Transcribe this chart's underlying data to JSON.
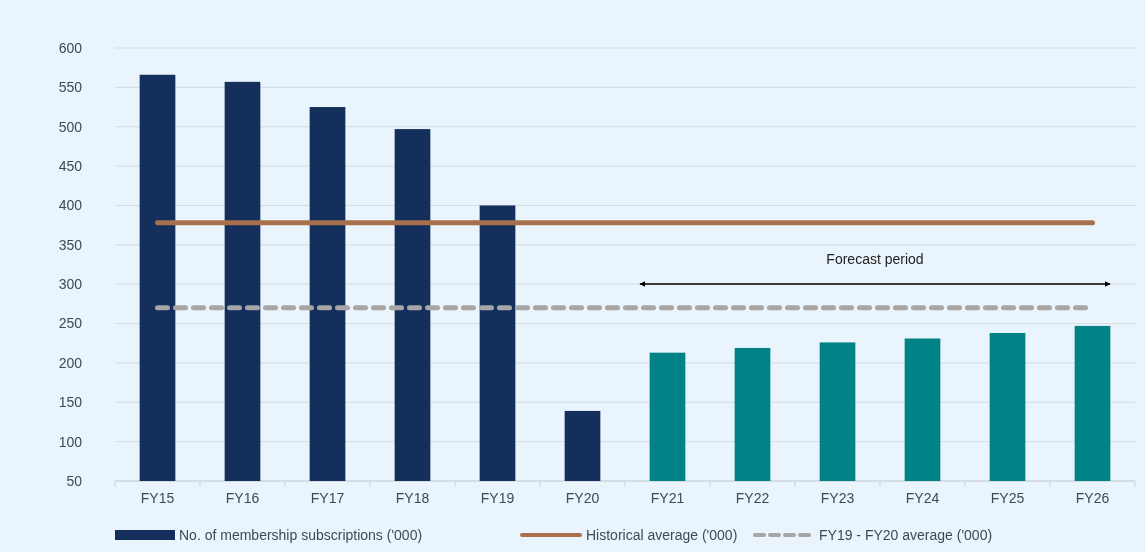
{
  "chart_data": {
    "type": "bar",
    "categories": [
      "FY15",
      "FY16",
      "FY17",
      "FY18",
      "FY19",
      "FY20",
      "FY21",
      "FY22",
      "FY23",
      "FY24",
      "FY25",
      "FY26"
    ],
    "series": [
      {
        "name": "No. of membership subscriptions ('000)",
        "color": "#142f5c",
        "colors": [
          "#142f5c",
          "#142f5c",
          "#142f5c",
          "#142f5c",
          "#142f5c",
          "#142f5c",
          "#008286",
          "#008286",
          "#008286",
          "#008286",
          "#008286",
          "#008286"
        ],
        "values": [
          566,
          557,
          525,
          497,
          400,
          139,
          213,
          219,
          226,
          231,
          238,
          247
        ]
      },
      {
        "name": "Historical average ('000)",
        "type": "line",
        "color": "#a8704a",
        "line_style": "solid",
        "values": [
          378,
          378,
          378,
          378,
          378,
          378,
          378,
          378,
          378,
          378,
          378,
          378
        ]
      },
      {
        "name": "FY19 - FY20 average ('000)",
        "type": "line",
        "color": "#a6a6a6",
        "line_style": "dashed",
        "values": [
          270,
          270,
          270,
          270,
          270,
          270,
          270,
          270,
          270,
          270,
          270,
          270
        ]
      }
    ],
    "ylim": [
      50,
      600
    ],
    "yticks": [
      50,
      100,
      150,
      200,
      250,
      300,
      350,
      400,
      450,
      500,
      550,
      600
    ],
    "grid": "y",
    "legend": "bottom",
    "annotations": [
      "Forecast period"
    ]
  }
}
